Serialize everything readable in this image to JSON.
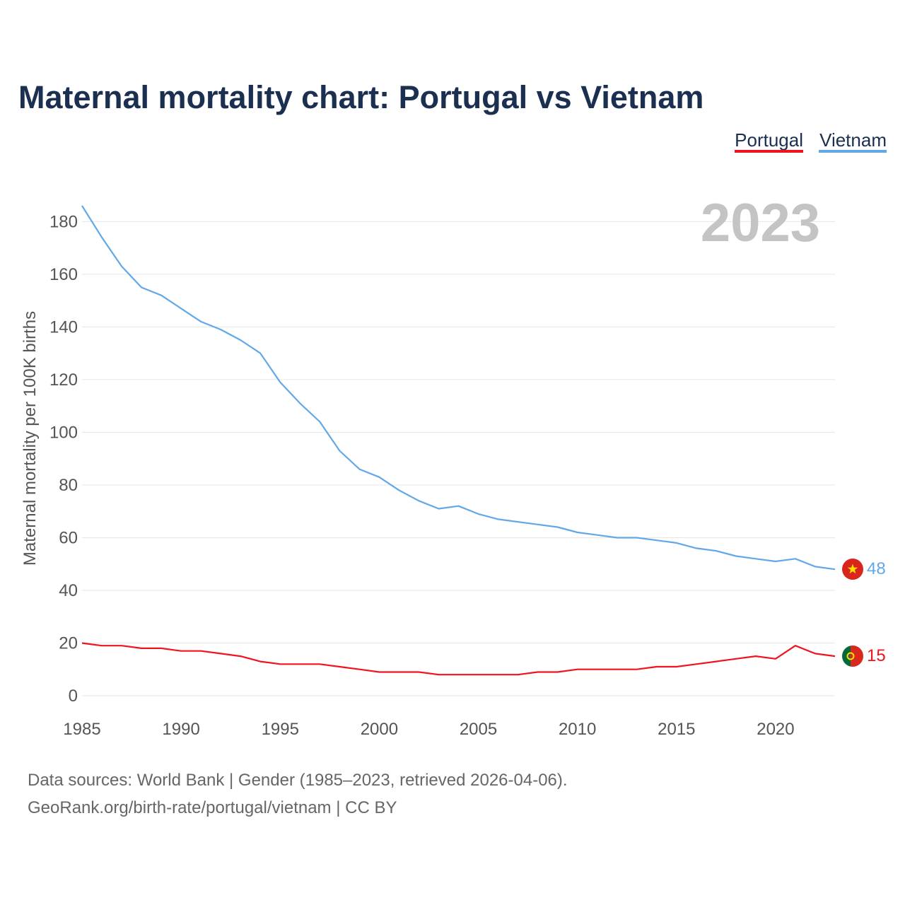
{
  "chart_data": {
    "type": "line",
    "title": "Maternal mortality chart: Portugal vs Vietnam",
    "ylabel": "Maternal mortality per 100K births",
    "xlabel": "",
    "year_watermark": "2023",
    "x": [
      1985,
      1986,
      1987,
      1988,
      1989,
      1990,
      1991,
      1992,
      1993,
      1994,
      1995,
      1996,
      1997,
      1998,
      1999,
      2000,
      2001,
      2002,
      2003,
      2004,
      2005,
      2006,
      2007,
      2008,
      2009,
      2010,
      2011,
      2012,
      2013,
      2014,
      2015,
      2016,
      2017,
      2018,
      2019,
      2020,
      2021,
      2022,
      2023
    ],
    "xlim": [
      1985,
      2023
    ],
    "ylim": [
      0,
      186
    ],
    "x_ticks": [
      1985,
      1990,
      1995,
      2000,
      2005,
      2010,
      2015,
      2020
    ],
    "y_ticks": [
      0,
      20,
      40,
      60,
      80,
      100,
      120,
      140,
      160,
      180
    ],
    "series": [
      {
        "name": "Portugal",
        "color": "#f0141e",
        "end_label": "15",
        "flag_icon": "portugal-flag-icon",
        "values": [
          20,
          19,
          19,
          18,
          18,
          17,
          17,
          16,
          15,
          13,
          12,
          12,
          12,
          11,
          10,
          9,
          9,
          9,
          8,
          8,
          8,
          8,
          8,
          9,
          9,
          10,
          10,
          10,
          10,
          11,
          11,
          12,
          13,
          14,
          15,
          14,
          19,
          16,
          15
        ]
      },
      {
        "name": "Vietnam",
        "color": "#62a8e8",
        "end_label": "48",
        "flag_icon": "vietnam-flag-icon",
        "values": [
          186,
          174,
          163,
          155,
          152,
          147,
          142,
          139,
          135,
          130,
          119,
          111,
          104,
          93,
          86,
          83,
          78,
          74,
          71,
          72,
          69,
          67,
          66,
          65,
          64,
          62,
          61,
          60,
          60,
          59,
          58,
          56,
          55,
          53,
          52,
          51,
          52,
          49,
          48
        ]
      }
    ]
  },
  "footer": {
    "source_line": "Data sources: World Bank | Gender (1985–2023, retrieved 2026-04-06).",
    "credit_line": "GeoRank.org/birth-rate/portugal/vietnam | CC BY"
  }
}
